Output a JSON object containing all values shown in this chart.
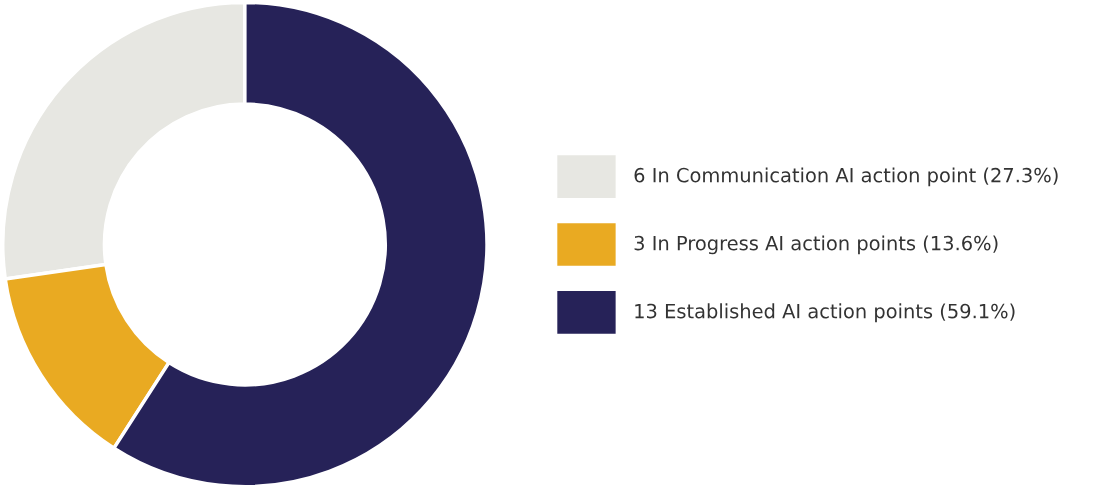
{
  "chart_data": {
    "type": "donut",
    "categories": [
      "6 In Communication AI action point (27.3%)",
      "3 In Progress AI action points (13.6%)",
      "13 Established AI action points (59.1%)"
    ],
    "values": [
      6,
      3,
      13
    ],
    "colors": [
      "#e7e7e2",
      "#e9aa22",
      "#262258"
    ],
    "legend": "right"
  }
}
